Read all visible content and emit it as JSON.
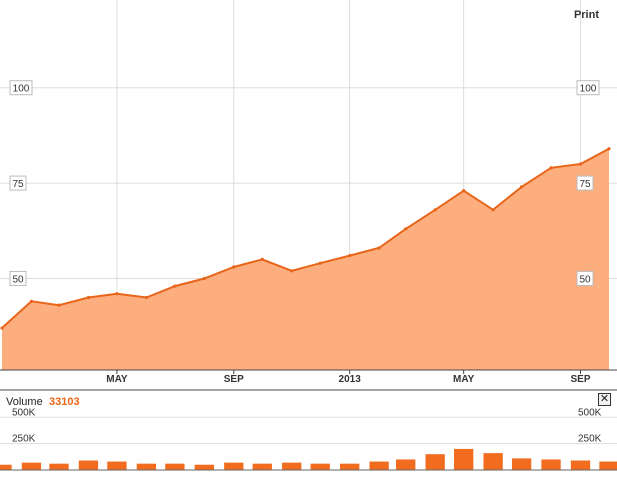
{
  "print_label": "Print",
  "volume": {
    "label": "Volume",
    "value": "33103"
  },
  "close_icon_glyph": "✕",
  "colors": {
    "line": "#e8651a",
    "fill": "#fcae7f",
    "volume_bars": "#f26c1f",
    "volume_value": "#ee6515",
    "grid": "#dddddd"
  },
  "chart_data": [
    {
      "type": "area",
      "title": "",
      "xlabel": "",
      "ylabel": "",
      "x_tick_labels": [
        "MAY",
        "SEP",
        "2013",
        "MAY",
        "SEP"
      ],
      "y_ticks": [
        50,
        75,
        100
      ],
      "y_tick_labels": [
        "50",
        "75",
        "100"
      ],
      "ylim": [
        26,
        123
      ],
      "grid": true,
      "series": [
        {
          "x": [
            "2012-01",
            "2012-02",
            "2012-03",
            "2012-04",
            "2012-05",
            "2012-06",
            "2012-07",
            "2012-08",
            "2012-09",
            "2012-10",
            "2012-11",
            "2012-12",
            "2013-01",
            "2013-02",
            "2013-03",
            "2013-04",
            "2013-05",
            "2013-06",
            "2013-07",
            "2013-08",
            "2013-09",
            "2013-10"
          ],
          "values": [
            37,
            44,
            43,
            45,
            46,
            45,
            48,
            50,
            53,
            55,
            52,
            54,
            56,
            58,
            63,
            68,
            73,
            68,
            74,
            79,
            80,
            84
          ]
        }
      ]
    },
    {
      "type": "bar",
      "title": "Volume",
      "y_ticks": [
        250000,
        500000
      ],
      "y_tick_labels": [
        "250K",
        "500K"
      ],
      "ylim": [
        0,
        550000
      ],
      "grid": true,
      "series": [
        {
          "x": [
            "2012-01",
            "2012-02",
            "2012-03",
            "2012-04",
            "2012-05",
            "2012-06",
            "2012-07",
            "2012-08",
            "2012-09",
            "2012-10",
            "2012-11",
            "2012-12",
            "2013-01",
            "2013-02",
            "2013-03",
            "2013-04",
            "2013-05",
            "2013-06",
            "2013-07",
            "2013-08",
            "2013-09",
            "2013-10"
          ],
          "values": [
            50000,
            70000,
            60000,
            90000,
            80000,
            60000,
            60000,
            50000,
            70000,
            60000,
            70000,
            60000,
            60000,
            80000,
            100000,
            150000,
            200000,
            160000,
            110000,
            100000,
            90000,
            80000
          ]
        }
      ]
    }
  ]
}
